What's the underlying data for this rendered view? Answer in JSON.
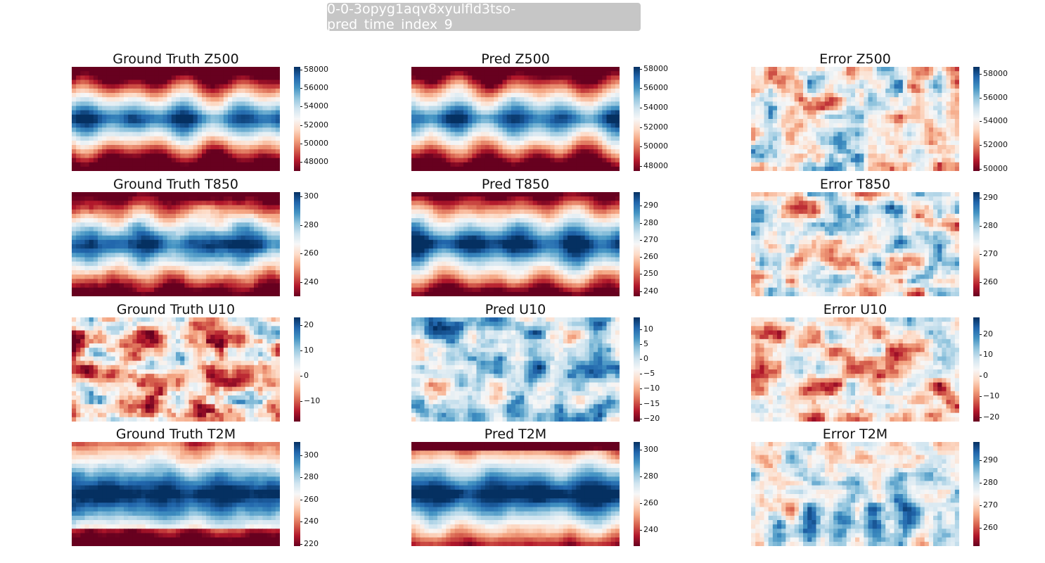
{
  "header": {
    "title": "0-0-3opyg1aqv8xyulfld3tso-pred_time_index_9"
  },
  "colors": {
    "red": "#67001f",
    "white": "#f7f7f7",
    "blue": "#053061",
    "chip": "#c6c6c6"
  },
  "chart_data": [
    {
      "type": "heatmap",
      "title": "Ground Truth Z500",
      "colorbar_ticks": [
        "58000",
        "56000",
        "54000",
        "52000",
        "50000",
        "48000"
      ],
      "tick_values": [
        58000,
        56000,
        54000,
        52000,
        50000,
        48000
      ],
      "clim": [
        47000,
        58300
      ],
      "pattern": "z500_truth"
    },
    {
      "type": "heatmap",
      "title": "Pred Z500",
      "colorbar_ticks": [
        "58000",
        "56000",
        "54000",
        "52000",
        "50000",
        "48000"
      ],
      "tick_values": [
        58000,
        56000,
        54000,
        52000,
        50000,
        48000
      ],
      "clim": [
        47500,
        58200
      ],
      "pattern": "z500_pred"
    },
    {
      "type": "heatmap",
      "title": "Error Z500",
      "colorbar_ticks": [
        "58000",
        "56000",
        "54000",
        "52000",
        "50000"
      ],
      "tick_values": [
        58000,
        56000,
        54000,
        52000,
        50000
      ],
      "clim": [
        49800,
        58600
      ],
      "pattern": "error"
    },
    {
      "type": "heatmap",
      "title": "Ground Truth T850",
      "colorbar_ticks": [
        "300",
        "280",
        "260",
        "240"
      ],
      "tick_values": [
        300,
        280,
        260,
        240
      ],
      "clim": [
        230,
        303
      ],
      "pattern": "t850_truth"
    },
    {
      "type": "heatmap",
      "title": "Pred T850",
      "colorbar_ticks": [
        "290",
        "280",
        "270",
        "260",
        "250",
        "240"
      ],
      "tick_values": [
        290,
        280,
        270,
        260,
        250,
        240
      ],
      "clim": [
        237,
        298
      ],
      "pattern": "t850_pred"
    },
    {
      "type": "heatmap",
      "title": "Error T850",
      "colorbar_ticks": [
        "290",
        "280",
        "270",
        "260"
      ],
      "tick_values": [
        290,
        280,
        270,
        260
      ],
      "clim": [
        255,
        292
      ],
      "pattern": "error"
    },
    {
      "type": "heatmap",
      "title": "Ground Truth U10",
      "colorbar_ticks": [
        "20",
        "10",
        "0",
        "−10"
      ],
      "tick_values": [
        20,
        10,
        0,
        -10
      ],
      "clim": [
        -18,
        23
      ],
      "pattern": "u10_truth"
    },
    {
      "type": "heatmap",
      "title": "Pred U10",
      "colorbar_ticks": [
        "10",
        "5",
        "0",
        "−5",
        "−10",
        "−15",
        "−20"
      ],
      "tick_values": [
        10,
        5,
        0,
        -5,
        -10,
        -15,
        -20
      ],
      "clim": [
        -21,
        14
      ],
      "pattern": "u10_pred"
    },
    {
      "type": "heatmap",
      "title": "Error U10",
      "colorbar_ticks": [
        "20",
        "10",
        "0",
        "−10",
        "−20"
      ],
      "tick_values": [
        20,
        10,
        0,
        -10,
        -20
      ],
      "clim": [
        -22,
        28
      ],
      "pattern": "u10_err"
    },
    {
      "type": "heatmap",
      "title": "Ground Truth T2M",
      "colorbar_ticks": [
        "300",
        "280",
        "260",
        "240",
        "220"
      ],
      "tick_values": [
        300,
        280,
        260,
        240,
        220
      ],
      "clim": [
        218,
        312
      ],
      "pattern": "t2m_truth"
    },
    {
      "type": "heatmap",
      "title": "Pred T2M",
      "colorbar_ticks": [
        "300",
        "280",
        "260",
        "240"
      ],
      "tick_values": [
        300,
        280,
        260,
        240
      ],
      "clim": [
        228,
        306
      ],
      "pattern": "t2m_pred"
    },
    {
      "type": "heatmap",
      "title": "Error T2M",
      "colorbar_ticks": [
        "290",
        "280",
        "270",
        "260"
      ],
      "tick_values": [
        290,
        280,
        270,
        260
      ],
      "clim": [
        252,
        298
      ],
      "pattern": "t2m_err"
    }
  ]
}
